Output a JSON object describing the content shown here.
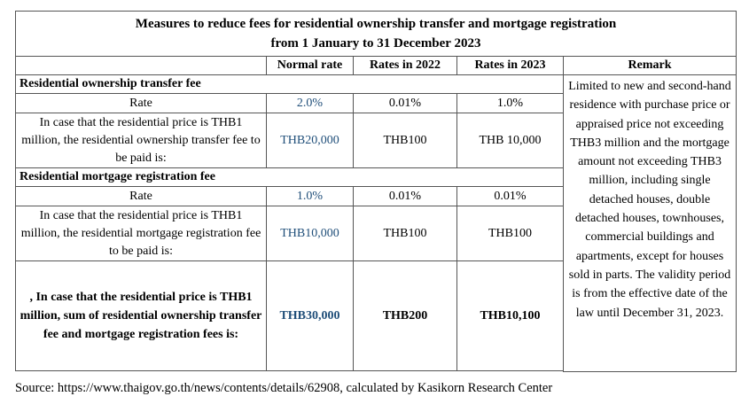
{
  "table": {
    "title_line1": "Measures to reduce fees for residential ownership transfer and mortgage registration",
    "title_line2": "from 1 January to 31 December 2023",
    "headers": {
      "normal_rate": "Normal rate",
      "rates_2022": "Rates in 2022",
      "rates_2023": "Rates in 2023",
      "remark": "Remark"
    },
    "section1": {
      "title": "Residential ownership transfer fee",
      "rate_label": "Rate",
      "rate_normal": "2.0%",
      "rate_2022": "0.01%",
      "rate_2023": "1.0%",
      "example_label": "In case that the residential price is THB1 million, the residential ownership transfer fee to be paid is:",
      "example_normal": "THB20,000",
      "example_2022": "THB100",
      "example_2023": "THB 10,000"
    },
    "section2": {
      "title": "Residential mortgage registration fee",
      "rate_label": "Rate",
      "rate_normal": "1.0%",
      "rate_2022": "0.01%",
      "rate_2023": "0.01%",
      "example_label": "In case that the residential price is THB1 million, the residential mortgage registration fee to be paid is:",
      "example_normal": "THB10,000",
      "example_2022": "THB100",
      "example_2023": "THB100"
    },
    "total": {
      "label": ", In case that the residential price is THB1 million,  sum of residential ownership transfer fee and mortgage registration fees is:",
      "normal": "THB30,000",
      "rate_2022": "THB200",
      "rate_2023": "THB10,100"
    },
    "remark_text": "Limited to new and second-hand residence with purchase price or appraised price not exceeding THB3 million and the mortgage amount not exceeding THB3 million, including single detached houses, double detached houses, townhouses, commercial buildings and apartments, except for houses sold in parts. The validity period is from the effective date of the law until December 31, 2023."
  },
  "source": "Source: https://www.thaigov.go.th/news/contents/details/62908, calculated by Kasikorn Research Center",
  "colors": {
    "normal_rate_text": "#1f4e79",
    "border": "#555555"
  }
}
